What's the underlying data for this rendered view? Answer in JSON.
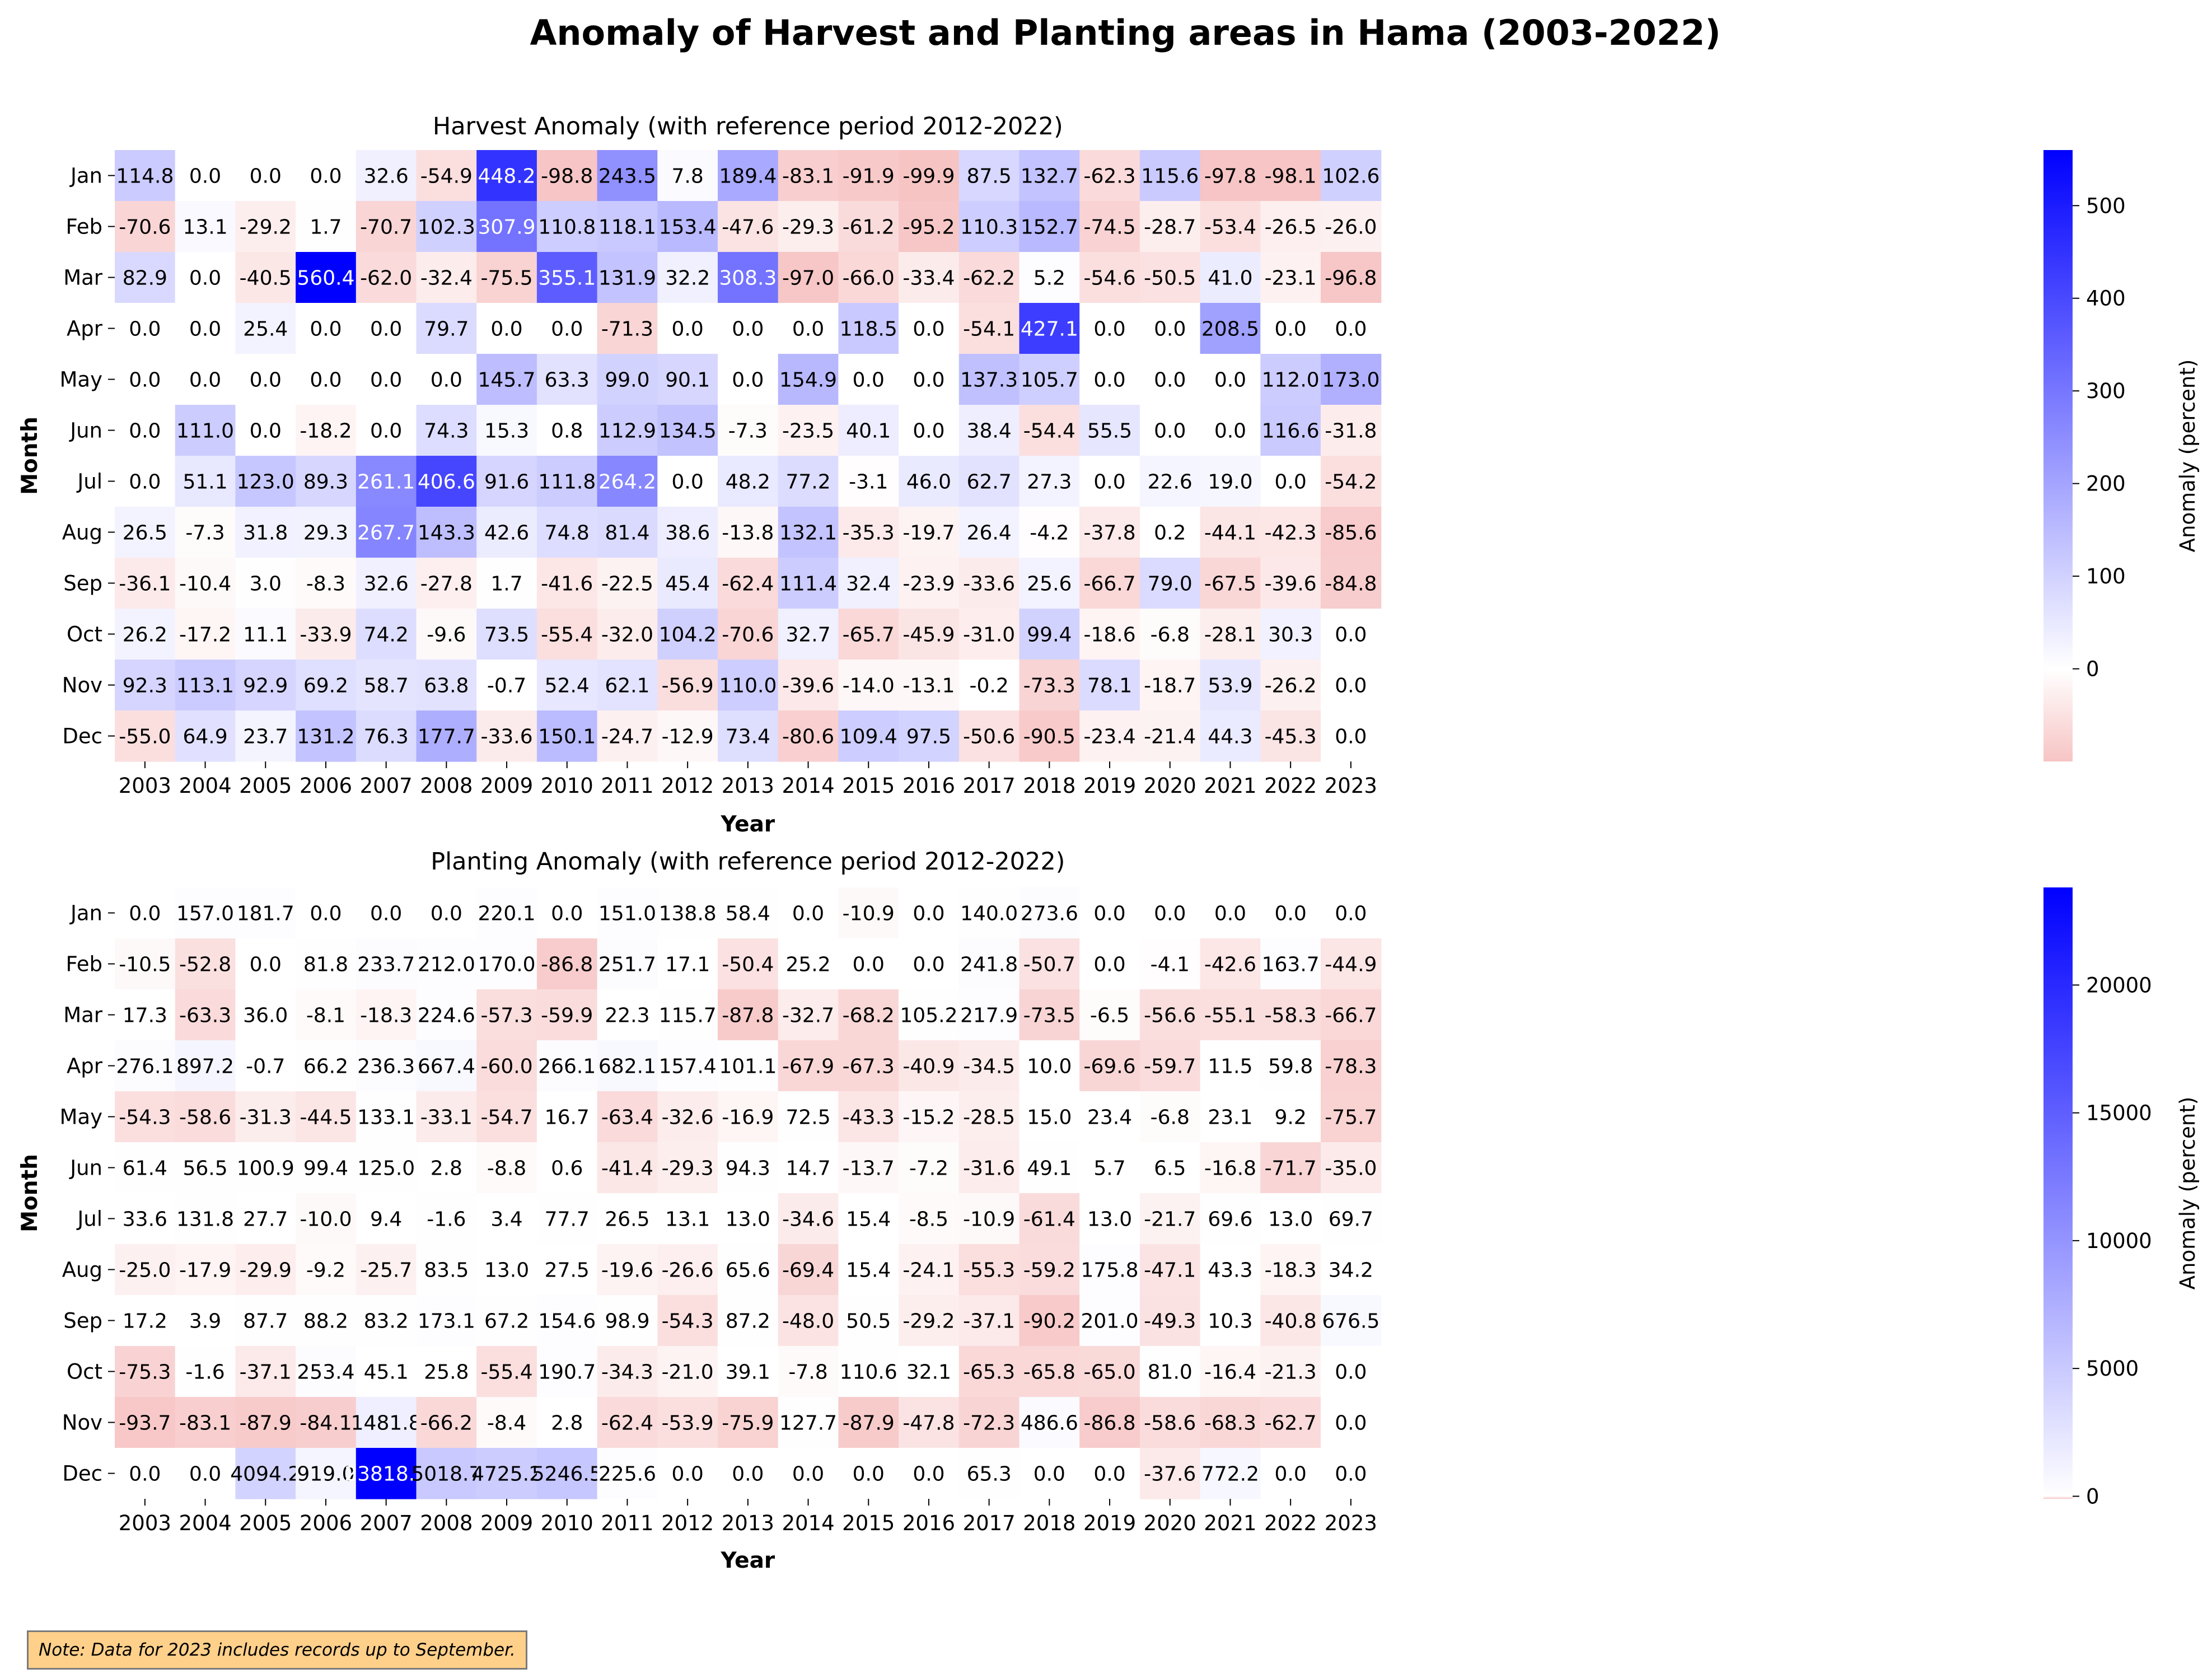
{
  "figure_title": "Anomaly of Harvest and Planting areas in Hama (2003-2022)",
  "note": "Note: Data for 2023 includes records up to September.",
  "colors": {
    "positive": "#0000ff",
    "zero": "#ffffff",
    "negative": "#f7c4c4",
    "note_background": "#ffd08a"
  },
  "chart_data": [
    {
      "type": "heatmap",
      "title": "Harvest Anomaly (with reference period 2012-2022)",
      "xlabel": "Year",
      "ylabel": "Month",
      "colorbar_label": "Anomaly (percent)",
      "colorbar_range": [
        -100,
        560
      ],
      "colorbar_ticks": [
        0,
        100,
        200,
        300,
        400,
        500
      ],
      "x": [
        "2003",
        "2004",
        "2005",
        "2006",
        "2007",
        "2008",
        "2009",
        "2010",
        "2011",
        "2012",
        "2013",
        "2014",
        "2015",
        "2016",
        "2017",
        "2018",
        "2019",
        "2020",
        "2021",
        "2022",
        "2023"
      ],
      "y": [
        "Jan",
        "Feb",
        "Mar",
        "Apr",
        "May",
        "Jun",
        "Jul",
        "Aug",
        "Sep",
        "Oct",
        "Nov",
        "Dec"
      ],
      "values": [
        [
          "114.8",
          "0.0",
          "0.0",
          "0.0",
          "32.6",
          "-54.9",
          "448.2",
          "-98.8",
          "243.5",
          "7.8",
          "189.4",
          "-83.1",
          "-91.9",
          "-99.9",
          "87.5",
          "132.7",
          "-62.3",
          "115.6",
          "-97.8",
          "-98.1",
          "102.6"
        ],
        [
          "-70.6",
          "13.1",
          "-29.2",
          "1.7",
          "-70.7",
          "102.3",
          "307.9",
          "110.8",
          "118.1",
          "153.4",
          "-47.6",
          "-29.3",
          "-61.2",
          "-95.2",
          "110.3",
          "152.7",
          "-74.5",
          "-28.7",
          "-53.4",
          "-26.5",
          "-26.0"
        ],
        [
          "82.9",
          "0.0",
          "-40.5",
          "560.4",
          "-62.0",
          "-32.4",
          "-75.5",
          "355.1",
          "131.9",
          "32.2",
          "308.3",
          "-97.0",
          "-66.0",
          "-33.4",
          "-62.2",
          "5.2",
          "-54.6",
          "-50.5",
          "41.0",
          "-23.1",
          "-96.8"
        ],
        [
          "0.0",
          "0.0",
          "25.4",
          "0.0",
          "0.0",
          "79.7",
          "0.0",
          "0.0",
          "-71.3",
          "0.0",
          "0.0",
          "0.0",
          "118.5",
          "0.0",
          "-54.1",
          "427.1",
          "0.0",
          "0.0",
          "208.5",
          "0.0",
          "0.0"
        ],
        [
          "0.0",
          "0.0",
          "0.0",
          "0.0",
          "0.0",
          "0.0",
          "145.7",
          "63.3",
          "99.0",
          "90.1",
          "0.0",
          "154.9",
          "0.0",
          "0.0",
          "137.3",
          "105.7",
          "0.0",
          "0.0",
          "0.0",
          "112.0",
          "173.0"
        ],
        [
          "0.0",
          "111.0",
          "0.0",
          "-18.2",
          "0.0",
          "74.3",
          "15.3",
          "0.8",
          "112.9",
          "134.5",
          "-7.3",
          "-23.5",
          "40.1",
          "0.0",
          "38.4",
          "-54.4",
          "55.5",
          "0.0",
          "0.0",
          "116.6",
          "-31.8"
        ],
        [
          "0.0",
          "51.1",
          "123.0",
          "89.3",
          "261.1",
          "406.6",
          "91.6",
          "111.8",
          "264.2",
          "0.0",
          "48.2",
          "77.2",
          "-3.1",
          "46.0",
          "62.7",
          "27.3",
          "0.0",
          "22.6",
          "19.0",
          "0.0",
          "-54.2"
        ],
        [
          "26.5",
          "-7.3",
          "31.8",
          "29.3",
          "267.7",
          "143.3",
          "42.6",
          "74.8",
          "81.4",
          "38.6",
          "-13.8",
          "132.1",
          "-35.3",
          "-19.7",
          "26.4",
          "-4.2",
          "-37.8",
          "0.2",
          "-44.1",
          "-42.3",
          "-85.6"
        ],
        [
          "-36.1",
          "-10.4",
          "3.0",
          "-8.3",
          "32.6",
          "-27.8",
          "1.7",
          "-41.6",
          "-22.5",
          "45.4",
          "-62.4",
          "111.4",
          "32.4",
          "-23.9",
          "-33.6",
          "25.6",
          "-66.7",
          "79.0",
          "-67.5",
          "-39.6",
          "-84.8"
        ],
        [
          "26.2",
          "-17.2",
          "11.1",
          "-33.9",
          "74.2",
          "-9.6",
          "73.5",
          "-55.4",
          "-32.0",
          "104.2",
          "-70.6",
          "32.7",
          "-65.7",
          "-45.9",
          "-31.0",
          "99.4",
          "-18.6",
          "-6.8",
          "-28.1",
          "30.3",
          "0.0"
        ],
        [
          "92.3",
          "113.1",
          "92.9",
          "69.2",
          "58.7",
          "63.8",
          "-0.7",
          "52.4",
          "62.1",
          "-56.9",
          "110.0",
          "-39.6",
          "-14.0",
          "-13.1",
          "-0.2",
          "-73.3",
          "78.1",
          "-18.7",
          "53.9",
          "-26.2",
          "0.0"
        ],
        [
          "-55.0",
          "64.9",
          "23.7",
          "131.2",
          "76.3",
          "177.7",
          "-33.6",
          "150.1",
          "-24.7",
          "-12.9",
          "73.4",
          "-80.6",
          "109.4",
          "97.5",
          "-50.6",
          "-90.5",
          "-23.4",
          "-21.4",
          "44.3",
          "-45.3",
          "0.0"
        ]
      ]
    },
    {
      "type": "heatmap",
      "title": "Planting Anomaly (with reference period 2012-2022)",
      "xlabel": "Year",
      "ylabel": "Month",
      "colorbar_label": "Anomaly (percent)",
      "colorbar_range": [
        -100,
        23818.3
      ],
      "colorbar_ticks": [
        0,
        5000,
        10000,
        15000,
        20000
      ],
      "x": [
        "2003",
        "2004",
        "2005",
        "2006",
        "2007",
        "2008",
        "2009",
        "2010",
        "2011",
        "2012",
        "2013",
        "2014",
        "2015",
        "2016",
        "2017",
        "2018",
        "2019",
        "2020",
        "2021",
        "2022",
        "2023"
      ],
      "y": [
        "Jan",
        "Feb",
        "Mar",
        "Apr",
        "May",
        "Jun",
        "Jul",
        "Aug",
        "Sep",
        "Oct",
        "Nov",
        "Dec"
      ],
      "values": [
        [
          "0.0",
          "157.0",
          "181.7",
          "0.0",
          "0.0",
          "0.0",
          "220.1",
          "0.0",
          "151.0",
          "138.8",
          "58.4",
          "0.0",
          "-10.9",
          "0.0",
          "140.0",
          "273.6",
          "0.0",
          "0.0",
          "0.0",
          "0.0",
          "0.0"
        ],
        [
          "-10.5",
          "-52.8",
          "0.0",
          "81.8",
          "233.7",
          "212.0",
          "170.0",
          "-86.8",
          "251.7",
          "17.1",
          "-50.4",
          "25.2",
          "0.0",
          "0.0",
          "241.8",
          "-50.7",
          "0.0",
          "-4.1",
          "-42.6",
          "163.7",
          "-44.9"
        ],
        [
          "17.3",
          "-63.3",
          "36.0",
          "-8.1",
          "-18.3",
          "224.6",
          "-57.3",
          "-59.9",
          "22.3",
          "115.7",
          "-87.8",
          "-32.7",
          "-68.2",
          "105.2",
          "217.9",
          "-73.5",
          "-6.5",
          "-56.6",
          "-55.1",
          "-58.3",
          "-66.7"
        ],
        [
          "276.1",
          "897.2",
          "-0.7",
          "66.2",
          "236.3",
          "667.4",
          "-60.0",
          "266.1",
          "682.1",
          "157.4",
          "101.1",
          "-67.9",
          "-67.3",
          "-40.9",
          "-34.5",
          "10.0",
          "-69.6",
          "-59.7",
          "11.5",
          "59.8",
          "-78.3"
        ],
        [
          "-54.3",
          "-58.6",
          "-31.3",
          "-44.5",
          "133.1",
          "-33.1",
          "-54.7",
          "16.7",
          "-63.4",
          "-32.6",
          "-16.9",
          "72.5",
          "-43.3",
          "-15.2",
          "-28.5",
          "15.0",
          "23.4",
          "-6.8",
          "23.1",
          "9.2",
          "-75.7"
        ],
        [
          "61.4",
          "56.5",
          "100.9",
          "99.4",
          "125.0",
          "2.8",
          "-8.8",
          "0.6",
          "-41.4",
          "-29.3",
          "94.3",
          "14.7",
          "-13.7",
          "-7.2",
          "-31.6",
          "49.1",
          "5.7",
          "6.5",
          "-16.8",
          "-71.7",
          "-35.0"
        ],
        [
          "33.6",
          "131.8",
          "27.7",
          "-10.0",
          "9.4",
          "-1.6",
          "3.4",
          "77.7",
          "26.5",
          "13.1",
          "13.0",
          "-34.6",
          "15.4",
          "-8.5",
          "-10.9",
          "-61.4",
          "13.0",
          "-21.7",
          "69.6",
          "13.0",
          "69.7"
        ],
        [
          "-25.0",
          "-17.9",
          "-29.9",
          "-9.2",
          "-25.7",
          "83.5",
          "13.0",
          "27.5",
          "-19.6",
          "-26.6",
          "65.6",
          "-69.4",
          "15.4",
          "-24.1",
          "-55.3",
          "-59.2",
          "175.8",
          "-47.1",
          "43.3",
          "-18.3",
          "34.2"
        ],
        [
          "17.2",
          "3.9",
          "87.7",
          "88.2",
          "83.2",
          "173.1",
          "67.2",
          "154.6",
          "98.9",
          "-54.3",
          "87.2",
          "-48.0",
          "50.5",
          "-29.2",
          "-37.1",
          "-90.2",
          "201.0",
          "-49.3",
          "10.3",
          "-40.8",
          "676.5"
        ],
        [
          "-75.3",
          "-1.6",
          "-37.1",
          "253.4",
          "45.1",
          "25.8",
          "-55.4",
          "190.7",
          "-34.3",
          "-21.0",
          "39.1",
          "-7.8",
          "110.6",
          "32.1",
          "-65.3",
          "-65.8",
          "-65.0",
          "81.0",
          "-16.4",
          "-21.3",
          "0.0"
        ],
        [
          "-93.7",
          "-83.1",
          "-87.9",
          "-84.1",
          "1481.8",
          "-66.2",
          "-8.4",
          "2.8",
          "-62.4",
          "-53.9",
          "-75.9",
          "127.7",
          "-87.9",
          "-47.8",
          "-72.3",
          "486.6",
          "-86.8",
          "-58.6",
          "-68.3",
          "-62.7",
          "0.0"
        ],
        [
          "0.0",
          "0.0",
          "4094.2",
          "919.0",
          "23818.3",
          "5018.7",
          "4725.2",
          "5246.5",
          "225.6",
          "0.0",
          "0.0",
          "0.0",
          "0.0",
          "0.0",
          "65.3",
          "0.0",
          "0.0",
          "-37.6",
          "772.2",
          "0.0",
          "0.0"
        ]
      ]
    }
  ]
}
